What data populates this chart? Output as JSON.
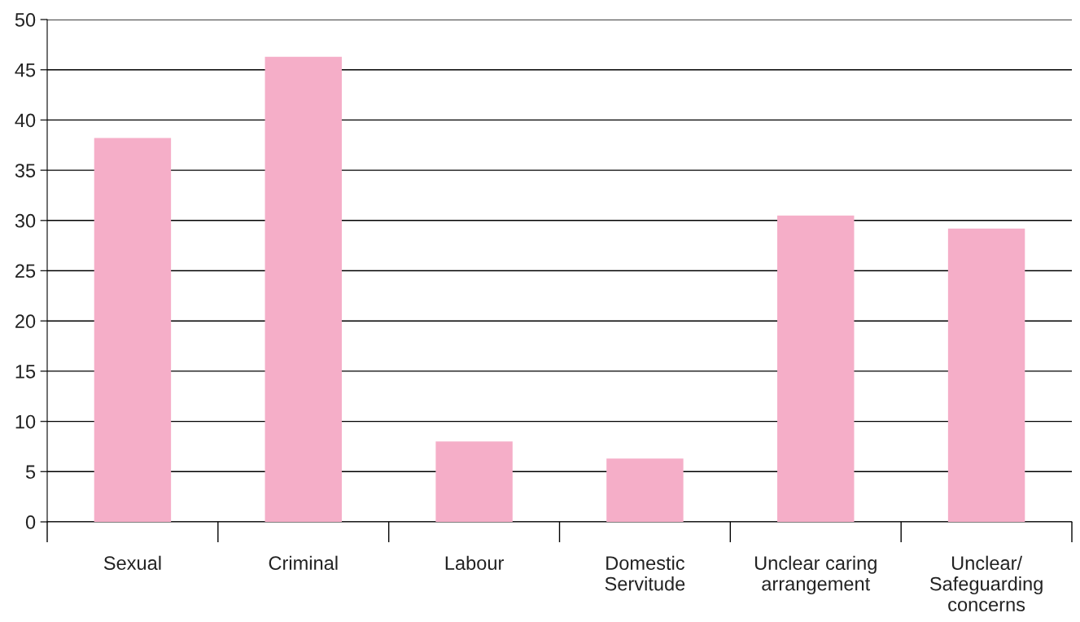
{
  "chart_data": {
    "type": "bar",
    "categories": [
      "Sexual",
      "Criminal",
      "Labour",
      "Domestic\nServitude",
      "Unclear caring\narrangement",
      "Unclear/\nSafeguarding\nconcerns"
    ],
    "values": [
      38.2,
      46.3,
      8.0,
      6.3,
      30.5,
      29.2
    ],
    "color": "#f5aec8",
    "ylim": [
      0,
      50
    ],
    "yticks": [
      0,
      5,
      10,
      15,
      20,
      25,
      30,
      35,
      40,
      45,
      50
    ],
    "grid": "y"
  }
}
